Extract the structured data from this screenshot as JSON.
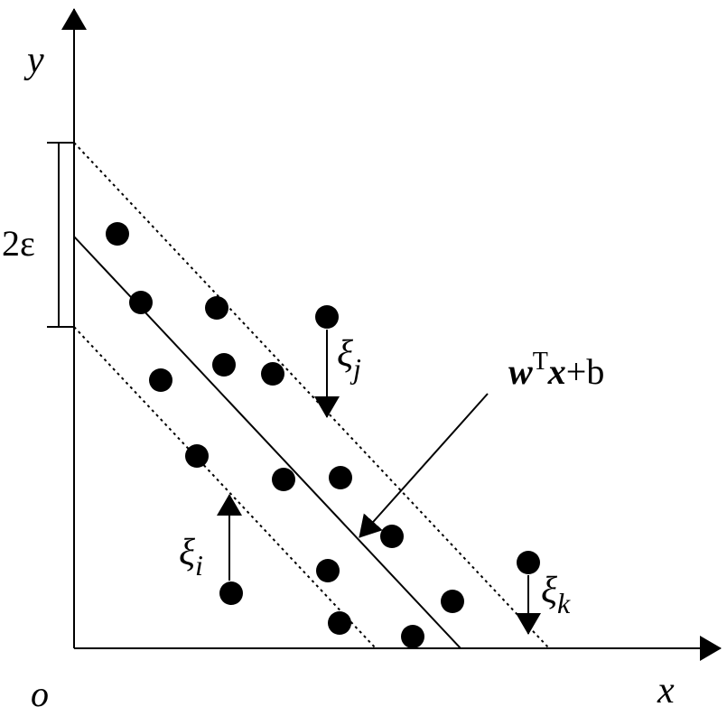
{
  "axes": {
    "y": "y",
    "x": "x",
    "origin": "o"
  },
  "margin_label": "2ε",
  "slacks": [
    {
      "symbol": "ξ",
      "subscript": "j"
    },
    {
      "symbol": "ξ",
      "subscript": "i"
    },
    {
      "symbol": "ξ",
      "subscript": "k"
    }
  ],
  "regression": {
    "w": "w",
    "superscript": "T",
    "x": "x",
    "rest": "+b"
  }
}
